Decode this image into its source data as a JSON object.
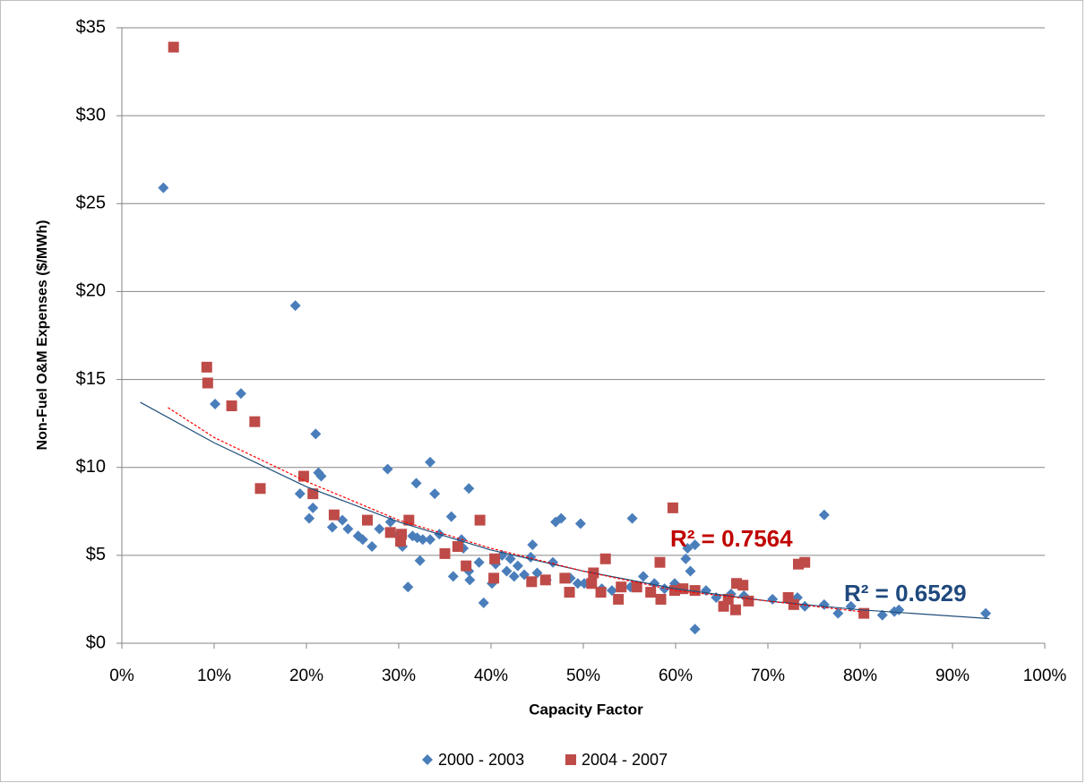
{
  "chart_data": {
    "type": "scatter",
    "xlabel": "Capacity Factor",
    "ylabel": "Non-Fuel O&M Expenses ($/MWh)",
    "xlim": [
      0,
      100
    ],
    "xticks": [
      {
        "value": 0,
        "label": "0%"
      },
      {
        "value": 10,
        "label": "10%"
      },
      {
        "value": 20,
        "label": "20%"
      },
      {
        "value": 30,
        "label": "30%"
      },
      {
        "value": 40,
        "label": "40%"
      },
      {
        "value": 50,
        "label": "50%"
      },
      {
        "value": 60,
        "label": "60%"
      },
      {
        "value": 70,
        "label": "70%"
      },
      {
        "value": 80,
        "label": "80%"
      },
      {
        "value": 90,
        "label": "90%"
      },
      {
        "value": 100,
        "label": "100%"
      }
    ],
    "ylim": [
      0,
      35
    ],
    "yticks": [
      {
        "value": 0,
        "label": "$0"
      },
      {
        "value": 5,
        "label": "$5"
      },
      {
        "value": 10,
        "label": "$10"
      },
      {
        "value": 15,
        "label": "$15"
      },
      {
        "value": 20,
        "label": "$20"
      },
      {
        "value": 25,
        "label": "$25"
      },
      {
        "value": 30,
        "label": "$30"
      },
      {
        "value": 35,
        "label": "$35"
      }
    ],
    "grid": true,
    "legend": "bottom",
    "series": [
      {
        "name": "2000 - 2003",
        "color": "#4a7ebb",
        "marker": "diamond",
        "x": [
          4.5,
          18.8,
          12.9,
          10.1,
          21.0,
          33.4,
          28.8,
          21.3,
          21.6,
          31.9,
          37.6,
          33.9,
          19.3,
          20.7,
          20.3,
          35.7,
          47.6,
          47.0,
          49.7,
          55.3,
          76.1,
          23.9,
          29.1,
          24.5,
          22.8,
          25.6,
          26.1,
          27.1,
          27.9,
          30.0,
          31.5,
          32.0,
          32.6,
          33.4,
          34.4,
          30.4,
          36.8,
          37.0,
          32.3,
          31.0,
          35.9,
          37.6,
          37.7,
          38.7,
          39.2,
          40.1,
          40.5,
          41.2,
          41.7,
          42.1,
          42.5,
          42.9,
          43.6,
          44.3,
          44.5,
          45.0,
          46.0,
          46.7,
          48.6,
          49.4,
          50.1,
          51.1,
          52.0,
          53.1,
          55.1,
          56.5,
          57.7,
          58.8,
          59.9,
          61.1,
          61.3,
          62.1,
          61.6,
          62.1,
          63.3,
          64.4,
          66.0,
          67.4,
          70.5,
          73.2,
          74.0,
          76.1,
          77.6,
          79.0,
          82.4,
          83.7,
          84.2,
          93.6
        ],
        "values": [
          25.9,
          19.2,
          14.2,
          13.6,
          11.9,
          10.3,
          9.9,
          9.7,
          9.5,
          9.1,
          8.8,
          8.5,
          8.5,
          7.7,
          7.1,
          7.2,
          7.1,
          6.9,
          6.8,
          7.1,
          7.3,
          7.0,
          6.9,
          6.5,
          6.6,
          6.1,
          5.9,
          5.5,
          6.5,
          6.2,
          6.1,
          6.0,
          5.9,
          5.9,
          6.2,
          5.5,
          5.9,
          5.4,
          4.7,
          3.2,
          3.8,
          4.1,
          3.6,
          4.6,
          2.3,
          3.4,
          4.5,
          5.0,
          4.1,
          4.8,
          3.8,
          4.4,
          3.9,
          4.9,
          5.6,
          4.0,
          3.6,
          4.6,
          3.7,
          3.4,
          3.4,
          4.0,
          3.1,
          3.0,
          3.2,
          3.8,
          3.4,
          3.1,
          3.4,
          4.8,
          5.4,
          5.6,
          4.1,
          0.8,
          3.0,
          2.6,
          2.8,
          2.7,
          2.5,
          2.6,
          2.1,
          2.2,
          1.7,
          2.1,
          1.6,
          1.8,
          1.9,
          1.7
        ]
      },
      {
        "name": "2004 - 2007",
        "color": "#be4b48",
        "marker": "square",
        "x": [
          5.6,
          9.2,
          9.3,
          11.9,
          14.4,
          15.0,
          19.7,
          20.7,
          23.0,
          26.6,
          31.1,
          38.8,
          29.1,
          30.3,
          30.2,
          35.0,
          36.4,
          37.3,
          40.4,
          40.3,
          44.4,
          45.9,
          48.0,
          48.5,
          51.1,
          50.9,
          51.9,
          52.4,
          53.8,
          54.1,
          55.8,
          57.3,
          58.3,
          58.4,
          59.7,
          59.9,
          60.8,
          62.1,
          65.2,
          65.7,
          66.5,
          66.6,
          67.3,
          67.9,
          72.2,
          72.8,
          73.3,
          74.0,
          80.4
        ],
        "values": [
          33.9,
          15.7,
          14.8,
          13.5,
          12.6,
          8.8,
          9.5,
          8.5,
          7.3,
          7.0,
          7.0,
          7.0,
          6.3,
          6.2,
          5.8,
          5.1,
          5.5,
          4.4,
          4.8,
          3.7,
          3.5,
          3.6,
          3.7,
          2.9,
          4.0,
          3.4,
          2.9,
          4.8,
          2.5,
          3.2,
          3.2,
          2.9,
          4.6,
          2.5,
          7.7,
          3.0,
          3.1,
          3.0,
          2.1,
          2.5,
          1.9,
          3.4,
          3.3,
          2.4,
          2.6,
          2.2,
          4.5,
          4.6,
          1.7
        ]
      }
    ],
    "trendlines": [
      {
        "color": "#1f4e79",
        "dash": false,
        "x": [
          2,
          10,
          20,
          30,
          40,
          50,
          60,
          70,
          80,
          94
        ],
        "values": [
          13.7,
          11.4,
          8.9,
          6.9,
          5.3,
          4.1,
          3.1,
          2.4,
          1.9,
          1.4
        ]
      },
      {
        "color": "#ff0000",
        "dash": true,
        "x": [
          5,
          10,
          20,
          30,
          40,
          50,
          60,
          70,
          80
        ],
        "values": [
          13.4,
          11.7,
          9.2,
          7.0,
          5.4,
          4.1,
          3.0,
          2.4,
          1.8
        ]
      }
    ],
    "annotations": [
      {
        "text": "R² = 0.7564",
        "color": "#c00000"
      },
      {
        "text": "R² = 0.6529",
        "color": "#1f497d"
      }
    ]
  }
}
